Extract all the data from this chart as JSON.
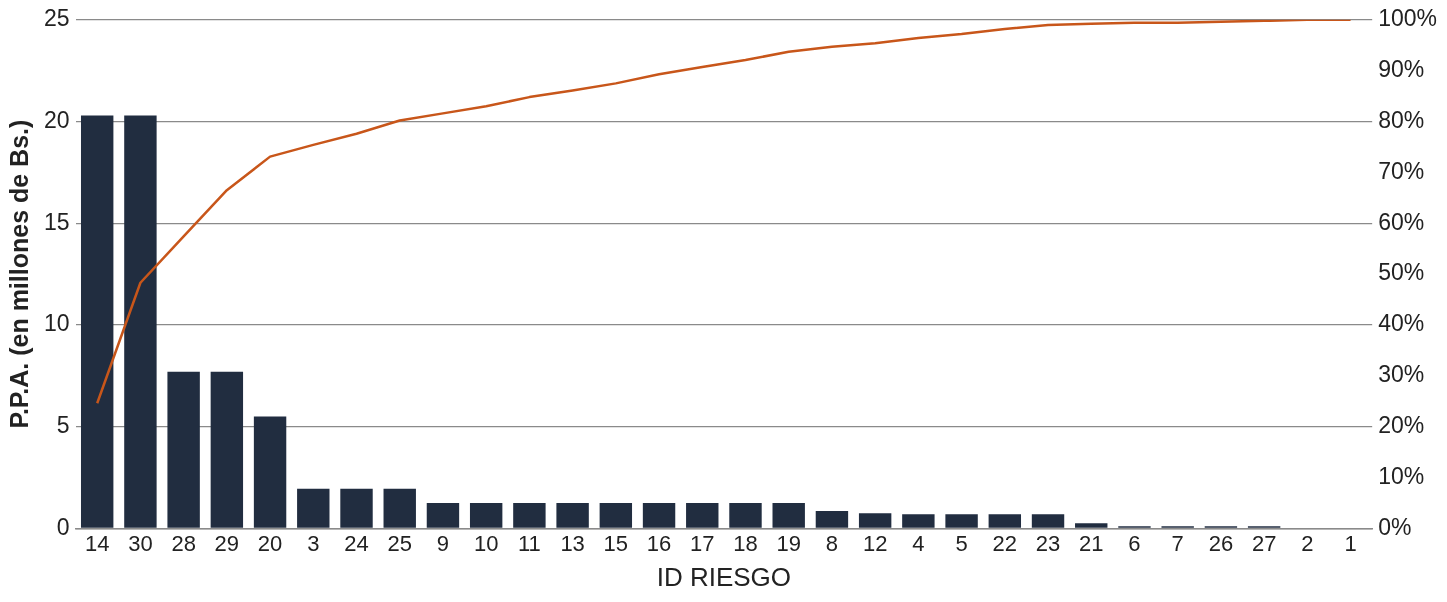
{
  "chart_data": {
    "type": "bar",
    "xlabel": "ID RIESGO",
    "ylabel": "P.P.A. (en millones de Bs.)",
    "categories": [
      "14",
      "30",
      "28",
      "29",
      "20",
      "3",
      "24",
      "25",
      "9",
      "10",
      "11",
      "13",
      "15",
      "16",
      "17",
      "18",
      "19",
      "8",
      "12",
      "4",
      "5",
      "22",
      "23",
      "21",
      "6",
      "7",
      "26",
      "27",
      "2",
      "1"
    ],
    "series": [
      {
        "color": "#212d40",
        "values": [
          20.3,
          20.3,
          7.7,
          7.7,
          5.5,
          1.95,
          1.95,
          1.95,
          1.25,
          1.25,
          1.25,
          1.25,
          1.25,
          1.25,
          1.25,
          1.25,
          1.25,
          0.85,
          0.75,
          0.7,
          0.7,
          0.7,
          0.7,
          0.25,
          0.1,
          0.1,
          0.1,
          0.1,
          0,
          0
        ]
      },
      {
        "type": "line",
        "axis": "y2",
        "color": "#c8561a",
        "values": [
          24.6,
          48.3,
          57.4,
          66.5,
          73.1,
          75.4,
          77.6,
          80.2,
          81.6,
          83,
          84.8,
          86.1,
          87.5,
          89.3,
          90.7,
          92.1,
          93.7,
          94.7,
          95.4,
          96.4,
          97.2,
          98.2,
          99,
          99.2,
          99.4,
          99.4,
          99.6,
          99.8,
          100,
          100
        ]
      }
    ],
    "ylim": [
      0,
      25
    ],
    "yticks": [
      0,
      5,
      10,
      15,
      20,
      25
    ],
    "y2lim": [
      0,
      100
    ],
    "y2ticks": [
      {
        "value": 0,
        "label": "0%"
      },
      {
        "value": 10,
        "label": "10%"
      },
      {
        "value": 20,
        "label": "20%"
      },
      {
        "value": 30,
        "label": "30%"
      },
      {
        "value": 40,
        "label": "40%"
      },
      {
        "value": 50,
        "label": "50%"
      },
      {
        "value": 60,
        "label": "60%"
      },
      {
        "value": 70,
        "label": "70%"
      },
      {
        "value": 80,
        "label": "80%"
      },
      {
        "value": 90,
        "label": "90%"
      },
      {
        "value": 100,
        "label": "100%"
      }
    ],
    "grid": "y",
    "legend": false,
    "marker": "none",
    "line_style": "solid"
  }
}
